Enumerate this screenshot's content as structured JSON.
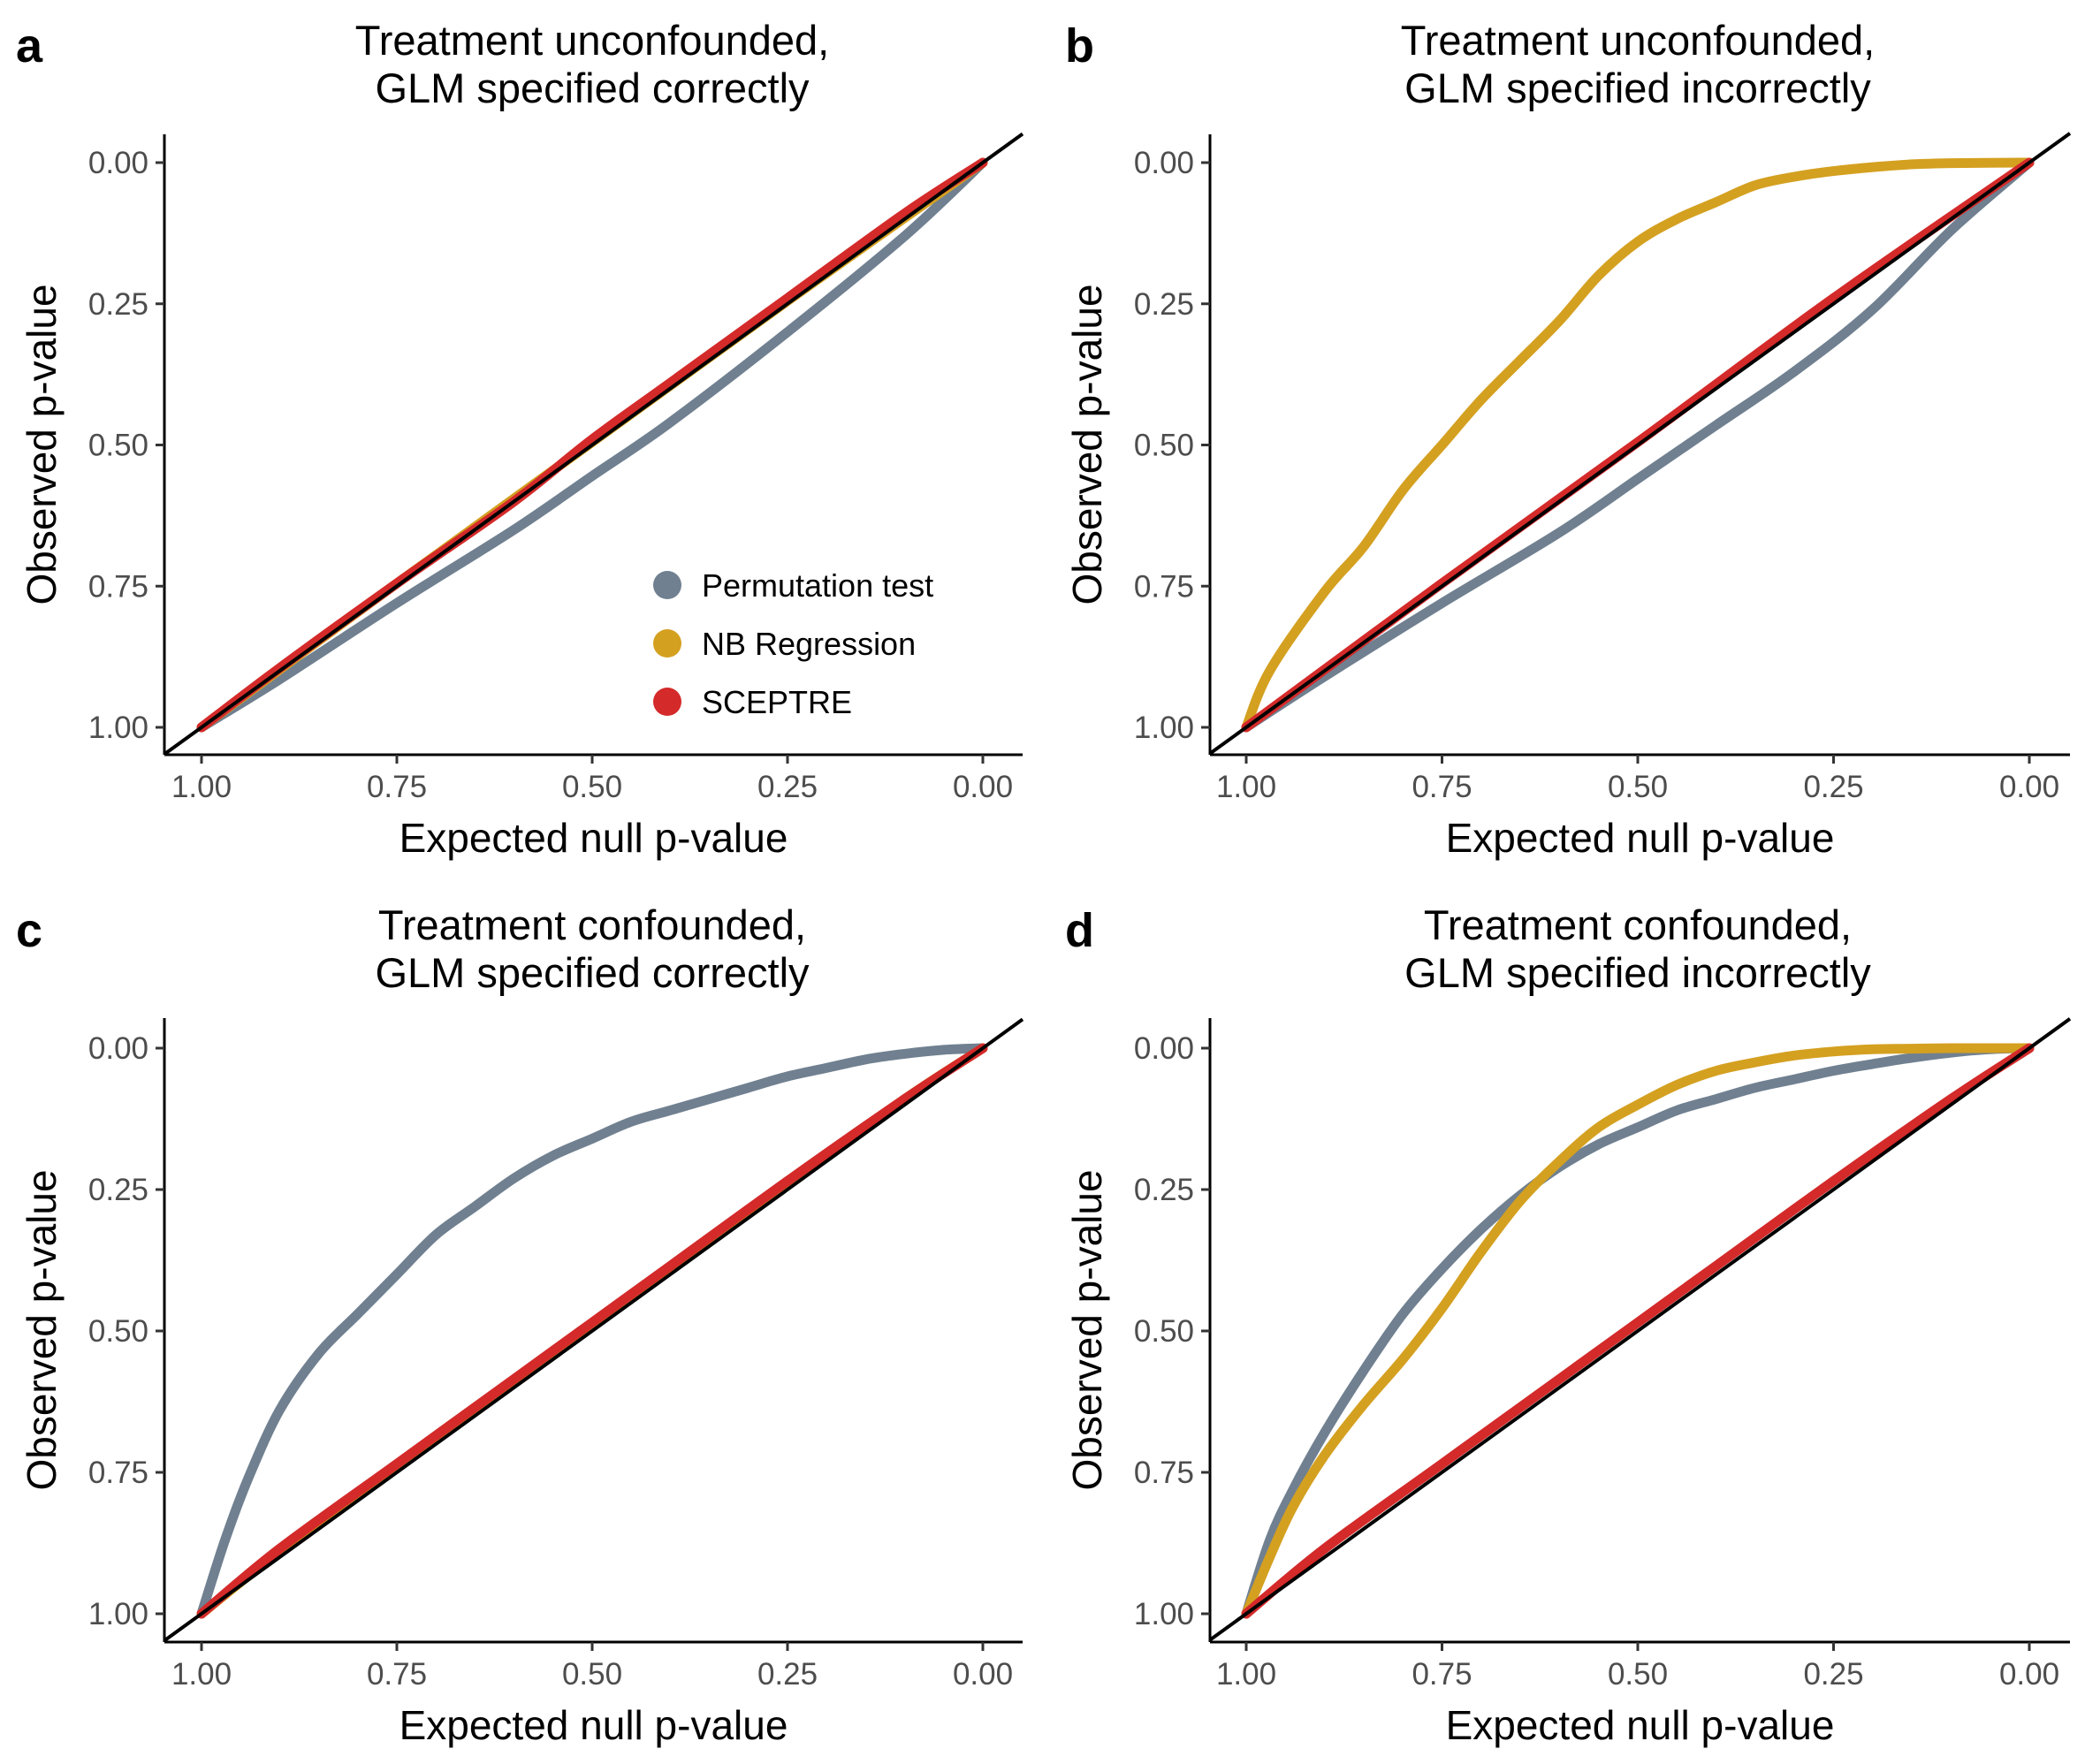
{
  "chart_data": [
    {
      "panel": "a",
      "type": "line",
      "title": [
        "Treatment unconfounded,",
        "GLM specified correctly"
      ],
      "xlabel": "Expected null p-value",
      "ylabel": "Observed p-value",
      "xlim": [
        1.0,
        0.0
      ],
      "ylim": [
        1.0,
        0.0
      ],
      "x_reversed": true,
      "y_reversed": true,
      "xticks": [
        "1.00",
        "0.75",
        "0.50",
        "0.25",
        "0.00"
      ],
      "yticks": [
        "0.00",
        "0.25",
        "0.50",
        "0.75",
        "1.00"
      ],
      "reference_line": "y = x",
      "legend": {
        "placement": "bottom-right",
        "entries": [
          "Permutation test",
          "NB Regression",
          "SCEPTRE"
        ]
      },
      "series": [
        {
          "name": "Permutation test",
          "color": "#708090",
          "x": [
            1.0,
            0.9,
            0.75,
            0.6,
            0.5,
            0.4,
            0.25,
            0.1,
            0.0
          ],
          "y": [
            1.0,
            0.915,
            0.78,
            0.65,
            0.555,
            0.46,
            0.3,
            0.13,
            0.0
          ]
        },
        {
          "name": "NB Regression",
          "color": "#D4A020",
          "x": [
            1.0,
            0.75,
            0.5,
            0.25,
            0.0
          ],
          "y": [
            1.0,
            0.745,
            0.495,
            0.245,
            0.0
          ]
        },
        {
          "name": "SCEPTRE",
          "color": "#D42A2A",
          "x": [
            1.0,
            0.9,
            0.75,
            0.6,
            0.5,
            0.4,
            0.25,
            0.1,
            0.0
          ],
          "y": [
            1.0,
            0.895,
            0.745,
            0.6,
            0.49,
            0.39,
            0.24,
            0.09,
            0.0
          ]
        }
      ]
    },
    {
      "panel": "b",
      "type": "line",
      "title": [
        "Treatment unconfounded,",
        "GLM specified incorrectly"
      ],
      "xlabel": "Expected null p-value",
      "ylabel": "Observed p-value",
      "xlim": [
        1.0,
        0.0
      ],
      "ylim": [
        1.0,
        0.0
      ],
      "x_reversed": true,
      "y_reversed": true,
      "xticks": [
        "1.00",
        "0.75",
        "0.50",
        "0.25",
        "0.00"
      ],
      "yticks": [
        "0.00",
        "0.25",
        "0.50",
        "0.75",
        "1.00"
      ],
      "reference_line": "y = x",
      "series": [
        {
          "name": "Permutation test",
          "color": "#708090",
          "x": [
            1.0,
            0.9,
            0.75,
            0.6,
            0.5,
            0.4,
            0.3,
            0.2,
            0.1,
            0.0
          ],
          "y": [
            1.0,
            0.91,
            0.78,
            0.655,
            0.56,
            0.465,
            0.37,
            0.26,
            0.12,
            0.0
          ]
        },
        {
          "name": "NB Regression",
          "color": "#D4A020",
          "x": [
            1.0,
            0.97,
            0.9,
            0.85,
            0.8,
            0.75,
            0.7,
            0.65,
            0.6,
            0.55,
            0.5,
            0.45,
            0.4,
            0.35,
            0.3,
            0.25,
            0.2,
            0.15,
            0.1,
            0.0
          ],
          "y": [
            1.0,
            0.9,
            0.76,
            0.68,
            0.58,
            0.5,
            0.42,
            0.35,
            0.28,
            0.2,
            0.14,
            0.1,
            0.07,
            0.04,
            0.025,
            0.015,
            0.008,
            0.003,
            0.001,
            0.0
          ]
        },
        {
          "name": "SCEPTRE",
          "color": "#D42A2A",
          "x": [
            1.0,
            0.75,
            0.5,
            0.25,
            0.0
          ],
          "y": [
            1.0,
            0.745,
            0.495,
            0.24,
            0.0
          ]
        }
      ]
    },
    {
      "panel": "c",
      "type": "line",
      "title": [
        "Treatment confounded,",
        "GLM specified correctly"
      ],
      "xlabel": "Expected null p-value",
      "ylabel": "Observed p-value",
      "xlim": [
        1.0,
        0.0
      ],
      "ylim": [
        1.0,
        0.0
      ],
      "x_reversed": true,
      "y_reversed": true,
      "xticks": [
        "1.00",
        "0.75",
        "0.50",
        "0.25",
        "0.00"
      ],
      "yticks": [
        "0.00",
        "0.25",
        "0.50",
        "0.75",
        "1.00"
      ],
      "reference_line": "y = x",
      "series": [
        {
          "name": "Permutation test",
          "color": "#708090",
          "x": [
            1.0,
            0.97,
            0.94,
            0.9,
            0.85,
            0.8,
            0.75,
            0.7,
            0.65,
            0.6,
            0.55,
            0.5,
            0.45,
            0.4,
            0.35,
            0.3,
            0.25,
            0.2,
            0.15,
            0.1,
            0.05,
            0.0
          ],
          "y": [
            1.0,
            0.87,
            0.76,
            0.64,
            0.54,
            0.47,
            0.4,
            0.33,
            0.28,
            0.23,
            0.19,
            0.16,
            0.13,
            0.11,
            0.09,
            0.07,
            0.05,
            0.035,
            0.02,
            0.01,
            0.003,
            0.0
          ]
        },
        {
          "name": "NB Regression",
          "color": "#D4A020",
          "x": [
            1.0,
            0.9,
            0.75,
            0.6,
            0.5,
            0.4,
            0.25,
            0.1,
            0.0
          ],
          "y": [
            1.0,
            0.89,
            0.74,
            0.59,
            0.49,
            0.39,
            0.24,
            0.09,
            0.0
          ]
        },
        {
          "name": "SCEPTRE",
          "color": "#D42A2A",
          "x": [
            1.0,
            0.9,
            0.75,
            0.6,
            0.5,
            0.4,
            0.25,
            0.1,
            0.0
          ],
          "y": [
            1.0,
            0.885,
            0.735,
            0.585,
            0.485,
            0.385,
            0.235,
            0.09,
            0.0
          ]
        }
      ]
    },
    {
      "panel": "d",
      "type": "line",
      "title": [
        "Treatment confounded,",
        "GLM specified incorrectly"
      ],
      "xlabel": "Expected null p-value",
      "ylabel": "Observed p-value",
      "xlim": [
        1.0,
        0.0
      ],
      "ylim": [
        1.0,
        0.0
      ],
      "x_reversed": true,
      "y_reversed": true,
      "xticks": [
        "1.00",
        "0.75",
        "0.50",
        "0.25",
        "0.00"
      ],
      "yticks": [
        "0.00",
        "0.25",
        "0.50",
        "0.75",
        "1.00"
      ],
      "reference_line": "y = x",
      "series": [
        {
          "name": "Permutation test",
          "color": "#708090",
          "x": [
            1.0,
            0.97,
            0.94,
            0.9,
            0.85,
            0.8,
            0.75,
            0.7,
            0.65,
            0.6,
            0.55,
            0.5,
            0.45,
            0.4,
            0.35,
            0.3,
            0.25,
            0.2,
            0.15,
            0.1,
            0.05,
            0.0
          ],
          "y": [
            1.0,
            0.87,
            0.78,
            0.68,
            0.57,
            0.47,
            0.39,
            0.32,
            0.26,
            0.21,
            0.17,
            0.14,
            0.11,
            0.09,
            0.07,
            0.055,
            0.04,
            0.028,
            0.017,
            0.008,
            0.002,
            0.0
          ]
        },
        {
          "name": "NB Regression",
          "color": "#D4A020",
          "x": [
            1.0,
            0.97,
            0.94,
            0.9,
            0.85,
            0.8,
            0.75,
            0.7,
            0.65,
            0.6,
            0.55,
            0.5,
            0.45,
            0.4,
            0.35,
            0.3,
            0.25,
            0.2,
            0.15,
            0.1,
            0.05,
            0.0
          ],
          "y": [
            1.0,
            0.9,
            0.81,
            0.72,
            0.63,
            0.55,
            0.46,
            0.36,
            0.27,
            0.2,
            0.14,
            0.1,
            0.065,
            0.04,
            0.025,
            0.013,
            0.006,
            0.002,
            0.001,
            0.0,
            0.0,
            0.0
          ]
        },
        {
          "name": "SCEPTRE",
          "color": "#D42A2A",
          "x": [
            1.0,
            0.9,
            0.75,
            0.6,
            0.5,
            0.4,
            0.25,
            0.1,
            0.0
          ],
          "y": [
            1.0,
            0.885,
            0.735,
            0.585,
            0.485,
            0.385,
            0.235,
            0.09,
            0.0
          ]
        }
      ]
    }
  ]
}
